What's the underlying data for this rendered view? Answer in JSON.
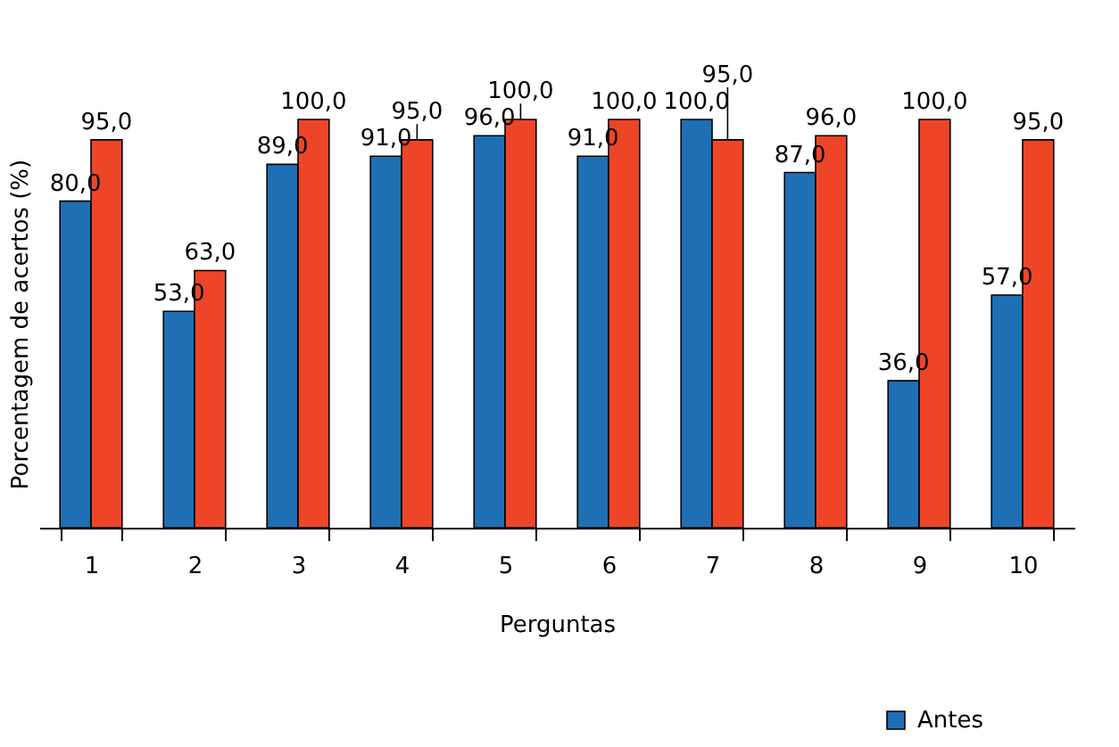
{
  "chart_data": {
    "type": "bar",
    "xlabel": "Perguntas",
    "ylabel": "Porcentagem de acertos (%)",
    "categories": [
      "1",
      "2",
      "3",
      "4",
      "5",
      "6",
      "7",
      "8",
      "9",
      "10"
    ],
    "series": [
      {
        "name": "Antes",
        "color": "#1f6fb5",
        "values": [
          80,
          53,
          89,
          91,
          96,
          91,
          100,
          87,
          36,
          57
        ],
        "value_labels": [
          "80,0",
          "53,0",
          "89,0",
          "91,0",
          "96,0",
          "91,0",
          "100,0",
          "87,0",
          "36,0",
          "57,0"
        ]
      },
      {
        "color": "#ee4528",
        "values": [
          95,
          63,
          100,
          95,
          100,
          100,
          95,
          96,
          100,
          95
        ],
        "value_labels": [
          "95,0",
          "63,0",
          "100,0",
          "95,0",
          "100,0",
          "100,0",
          "95,0",
          "96,0",
          "100,0",
          "95,0"
        ]
      }
    ],
    "ylim": [
      0,
      100
    ],
    "tick_labels": "x",
    "grid": false,
    "legend": "bottom right"
  }
}
